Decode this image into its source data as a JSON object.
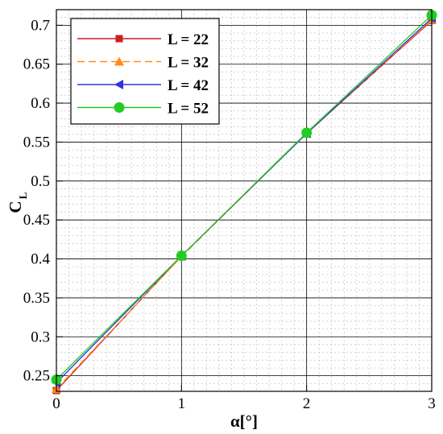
{
  "chart_data": {
    "type": "line",
    "xlabel": "α[°]",
    "ylabel_main": "C",
    "ylabel_sub": "L",
    "xlim": [
      0,
      3
    ],
    "ylim": [
      0.23,
      0.72
    ],
    "xticks": [
      0,
      1,
      2,
      3
    ],
    "xtick_labels": [
      "0",
      "1",
      "2",
      "3"
    ],
    "yticks": [
      0.25,
      0.3,
      0.35,
      0.4,
      0.45,
      0.5,
      0.55,
      0.6,
      0.65,
      0.7
    ],
    "ytick_labels": [
      "0.25",
      "0.3",
      "0.35",
      "0.4",
      "0.45",
      "0.5",
      "0.55",
      "0.6",
      "0.65",
      "0.7"
    ],
    "grid": "major solid, minor dotted",
    "legend_position": "top-left",
    "x": [
      0,
      1,
      2,
      3
    ],
    "series": [
      {
        "name": "L = 22",
        "values": [
          0.231,
          0.404,
          0.561,
          0.706
        ],
        "color": "#cc1f1f",
        "marker": "square",
        "dash": "solid"
      },
      {
        "name": "L = 32",
        "values": [
          0.233,
          0.403,
          0.561,
          0.707
        ],
        "color": "#ff8c1a",
        "marker": "triangle",
        "dash": "dashed"
      },
      {
        "name": "L = 42",
        "values": [
          0.241,
          0.404,
          0.561,
          0.709
        ],
        "color": "#3333dd",
        "marker": "triangle-left",
        "dash": "solid"
      },
      {
        "name": "L = 52",
        "values": [
          0.245,
          0.404,
          0.562,
          0.713
        ],
        "color": "#22cc22",
        "marker": "circle",
        "dash": "solid"
      }
    ]
  }
}
